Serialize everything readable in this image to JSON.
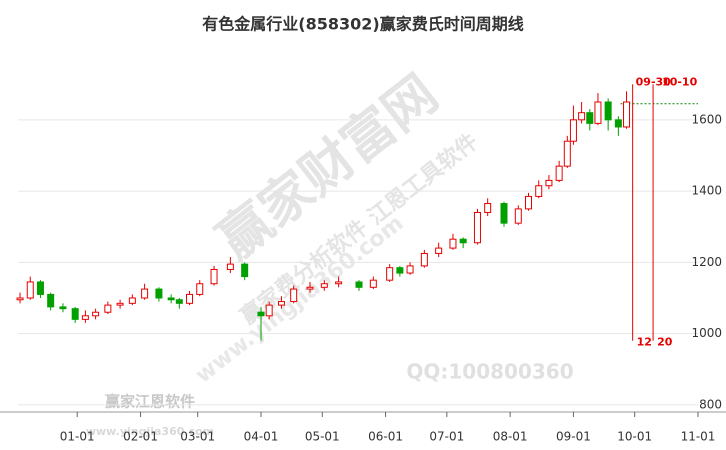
{
  "chart_data": {
    "type": "candlestick",
    "title": "有色金属行业(858302)赢家费氏时间周期线",
    "x": [
      -28,
      -23,
      -18,
      -13,
      -7,
      -1,
      4,
      9,
      15,
      21,
      27,
      33,
      40,
      46,
      50,
      55,
      60,
      67,
      75,
      82,
      90,
      94,
      100,
      106,
      114,
      121,
      128,
      138,
      145,
      153,
      158,
      163,
      170,
      177,
      184,
      189,
      196,
      201,
      209,
      216,
      221,
      226,
      231,
      236,
      240,
      243,
      247,
      251,
      255,
      260,
      265,
      269
    ],
    "open": [
      1095,
      1100,
      1145,
      1110,
      1075,
      1070,
      1040,
      1050,
      1060,
      1080,
      1085,
      1100,
      1125,
      1100,
      1095,
      1085,
      1110,
      1140,
      1180,
      1195,
      1060,
      1050,
      1080,
      1090,
      1125,
      1130,
      1140,
      1145,
      1130,
      1150,
      1185,
      1170,
      1190,
      1225,
      1240,
      1265,
      1255,
      1340,
      1365,
      1310,
      1350,
      1385,
      1415,
      1430,
      1470,
      1540,
      1600,
      1620,
      1590,
      1650,
      1600,
      1580
    ],
    "high": [
      1115,
      1160,
      1150,
      1115,
      1085,
      1075,
      1065,
      1070,
      1090,
      1095,
      1110,
      1140,
      1130,
      1110,
      1100,
      1120,
      1150,
      1190,
      1215,
      1200,
      1075,
      1090,
      1105,
      1135,
      1145,
      1150,
      1160,
      1150,
      1160,
      1195,
      1190,
      1200,
      1235,
      1255,
      1280,
      1270,
      1350,
      1380,
      1370,
      1360,
      1395,
      1430,
      1445,
      1485,
      1555,
      1640,
      1650,
      1630,
      1675,
      1660,
      1610,
      1680
    ],
    "low": [
      1085,
      1095,
      1100,
      1065,
      1060,
      1030,
      1030,
      1040,
      1055,
      1070,
      1080,
      1095,
      1090,
      1085,
      1070,
      1080,
      1105,
      1135,
      1170,
      1150,
      980,
      1040,
      1070,
      1085,
      1115,
      1120,
      1130,
      1120,
      1125,
      1145,
      1160,
      1165,
      1185,
      1215,
      1235,
      1240,
      1250,
      1330,
      1300,
      1305,
      1345,
      1380,
      1405,
      1425,
      1465,
      1530,
      1590,
      1570,
      1585,
      1570,
      1555,
      1575
    ],
    "close": [
      1100,
      1145,
      1110,
      1075,
      1070,
      1040,
      1050,
      1060,
      1080,
      1085,
      1100,
      1125,
      1100,
      1095,
      1085,
      1110,
      1140,
      1180,
      1195,
      1160,
      1050,
      1080,
      1090,
      1125,
      1130,
      1140,
      1145,
      1130,
      1150,
      1185,
      1170,
      1190,
      1225,
      1240,
      1265,
      1255,
      1340,
      1365,
      1310,
      1350,
      1385,
      1415,
      1430,
      1470,
      1540,
      1600,
      1620,
      1590,
      1650,
      1600,
      1580,
      1650
    ],
    "up_color": "#e60000",
    "down_color": "#00a000",
    "xlim": [
      -29,
      304
    ],
    "xticks": [
      {
        "value": 0,
        "label": "01-01"
      },
      {
        "value": 31,
        "label": "02-01"
      },
      {
        "value": 59,
        "label": "03-01"
      },
      {
        "value": 90,
        "label": "04-01"
      },
      {
        "value": 120,
        "label": "05-01"
      },
      {
        "value": 151,
        "label": "06-01"
      },
      {
        "value": 181,
        "label": "07-01"
      },
      {
        "value": 212,
        "label": "08-01"
      },
      {
        "value": 243,
        "label": "09-01"
      },
      {
        "value": 273,
        "label": "10-01"
      },
      {
        "value": 304,
        "label": "11-01"
      }
    ],
    "ylim": [
      780,
      1810
    ],
    "yticks": [
      800,
      1000,
      1200,
      1400,
      1600
    ],
    "grid": true,
    "reference_line": 1645,
    "cycle_lines": [
      {
        "x": 272,
        "label": "09-30",
        "count": 12
      },
      {
        "x": 282,
        "label": "10-10",
        "count": 20
      }
    ],
    "watermarks": [
      "赢家财富网",
      "赢家费分析软件 江恩工具软件",
      "www.yingjia360.com",
      "QQ:100800360",
      "赢家江恩软件",
      "www.yingjia360.com"
    ]
  }
}
